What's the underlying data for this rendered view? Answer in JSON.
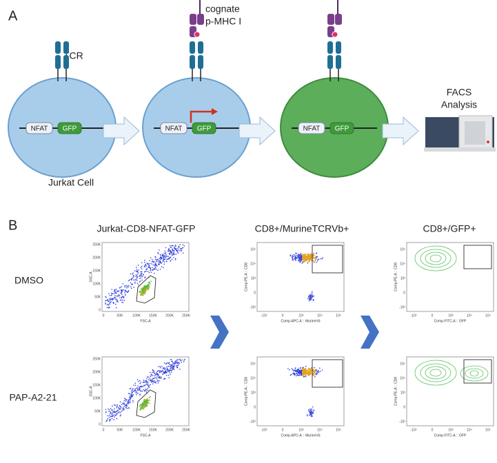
{
  "panel_a": {
    "label": "A",
    "tcr_label": "TCR",
    "pmhc_label": [
      "cognate",
      "p-MHC I"
    ],
    "cells": [
      {
        "nfat": "NFAT",
        "gfp": "GFP"
      },
      {
        "nfat": "NFAT",
        "gfp": "GFP"
      },
      {
        "nfat": "NFAT",
        "gfp": "GFP"
      }
    ],
    "cell_caption": "Jurkat Cell",
    "facs_label": [
      "FACS",
      "Analysis"
    ]
  },
  "panel_b": {
    "label": "B",
    "columns": [
      "Jurkat-CD8-NFAT-GFP",
      "CD8+/MurineTCRVb+",
      "CD8+/GFP+"
    ],
    "rows": [
      "DMSO",
      "PAP-A2-21"
    ],
    "scatter_plot": {
      "x_label": "FSC-A",
      "y_label": "SSC-A",
      "ticks": [
        "0",
        "50K",
        "100K",
        "150K",
        "200K",
        "250K"
      ]
    },
    "vb_plot": {
      "x_label": "Comp-APC-A :: MurineVb",
      "y_label": "Comp-PE-A :: CD8"
    },
    "gfp_plot": {
      "x_label": "Comp-FITC-A :: GFP",
      "y_label": "Comp-PE-A :: CD8"
    },
    "log_ticks": [
      "-10³",
      "0",
      "10³",
      "10⁴",
      "10⁵"
    ]
  }
}
